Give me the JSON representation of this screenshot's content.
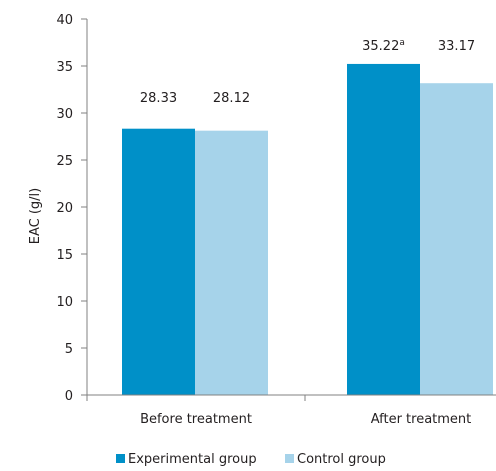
{
  "chart_data": {
    "type": "bar",
    "title": "",
    "xlabel": "",
    "ylabel": "EAC (g/l)",
    "ylim": [
      0,
      40
    ],
    "yticks": [
      0,
      5,
      10,
      15,
      20,
      25,
      30,
      35,
      40
    ],
    "grid": false,
    "legend_position": "bottom",
    "categories": [
      "Before treatment",
      "After treatment"
    ],
    "series": [
      {
        "name": "Experimental group",
        "color": "#0090c8",
        "values": [
          28.33,
          35.22
        ],
        "labels": [
          "28.33",
          "35.22"
        ],
        "label_superscripts": [
          "",
          "a"
        ]
      },
      {
        "name": "Control group",
        "color": "#a6d3ea",
        "values": [
          28.12,
          33.17
        ],
        "labels": [
          "28.12",
          "33.17"
        ],
        "label_superscripts": [
          "",
          ""
        ]
      }
    ]
  }
}
